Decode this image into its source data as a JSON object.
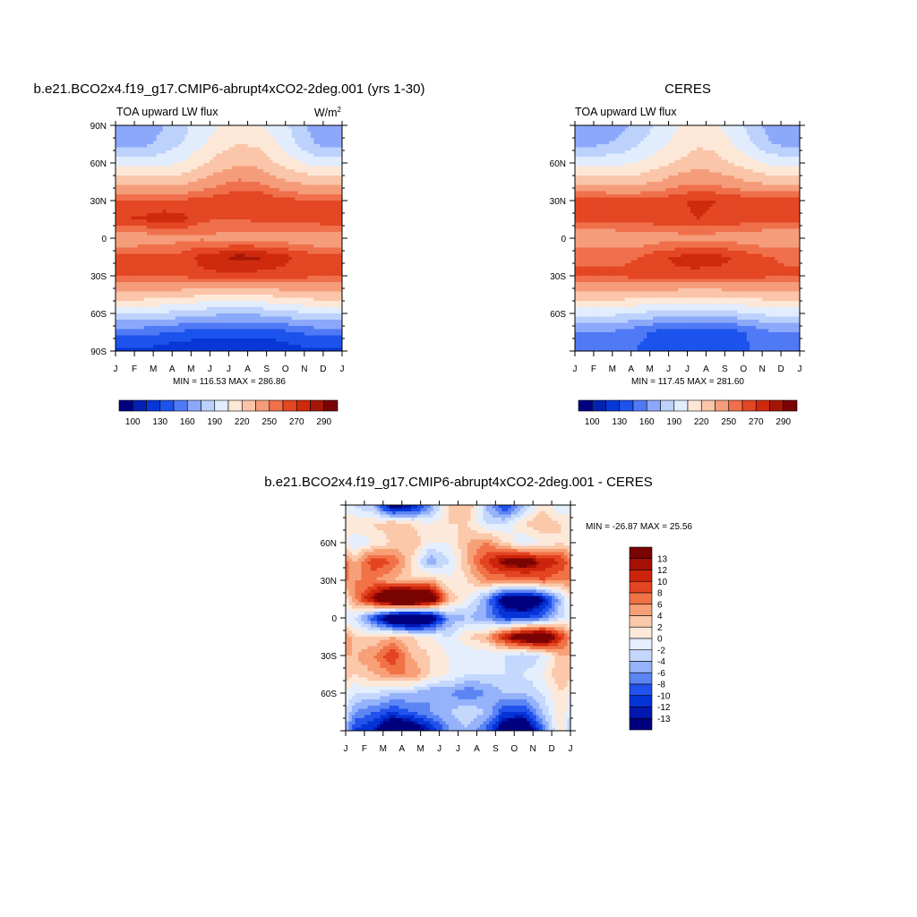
{
  "chart_data": [
    {
      "type": "heatmap",
      "title": "b.e21.BCO2x4.f19_g17.CMIP6-abrupt4xCO2-2deg.001 (yrs 1-30)",
      "subtitle": "TOA upward LW flux",
      "units": "W/m",
      "units_superscript": "2",
      "x_ticks": [
        "J",
        "F",
        "M",
        "A",
        "M",
        "J",
        "J",
        "A",
        "S",
        "O",
        "N",
        "D",
        "J"
      ],
      "y_ticks": [
        {
          "lat": 90,
          "label": "90N"
        },
        {
          "lat": 60,
          "label": "60N"
        },
        {
          "lat": 30,
          "label": "30N"
        },
        {
          "lat": 0,
          "label": "0"
        },
        {
          "lat": -30,
          "label": "30S"
        },
        {
          "lat": -60,
          "label": "60S"
        },
        {
          "lat": -90,
          "label": "90S"
        }
      ],
      "min": 116.53,
      "max": 286.86,
      "stats_text": "MIN = 116.53 MAX = 286.86",
      "colorbar_labels": [
        "100",
        "130",
        "160",
        "190",
        "220",
        "250",
        "270",
        "290"
      ],
      "months": [
        "Jan",
        "Feb",
        "Mar",
        "Apr",
        "May",
        "Jun",
        "Jul",
        "Aug",
        "Sep",
        "Oct",
        "Nov",
        "Dec"
      ],
      "latitudes": [
        -88,
        -75,
        -60,
        -45,
        -30,
        -15,
        0,
        15,
        30,
        45,
        60,
        75,
        88
      ],
      "values": [
        [
          128,
          130,
          125,
          120,
          118,
          119,
          118,
          118,
          121,
          126,
          130,
          128
        ],
        [
          150,
          150,
          146,
          142,
          138,
          137,
          136,
          136,
          138,
          144,
          150,
          150
        ],
        [
          190,
          190,
          188,
          184,
          180,
          178,
          178,
          178,
          182,
          186,
          190,
          190
        ],
        [
          230,
          230,
          228,
          226,
          222,
          222,
          222,
          222,
          224,
          228,
          230,
          230
        ],
        [
          262,
          262,
          260,
          262,
          266,
          268,
          266,
          266,
          266,
          264,
          262,
          262
        ],
        [
          262,
          262,
          262,
          264,
          274,
          278,
          284,
          282,
          276,
          270,
          264,
          262
        ],
        [
          240,
          242,
          244,
          246,
          248,
          246,
          244,
          244,
          244,
          242,
          240,
          240
        ],
        [
          270,
          272,
          276,
          274,
          262,
          260,
          260,
          262,
          262,
          262,
          266,
          268
        ],
        [
          262,
          262,
          262,
          262,
          264,
          266,
          270,
          270,
          266,
          262,
          262,
          262
        ],
        [
          228,
          228,
          228,
          230,
          238,
          246,
          252,
          250,
          240,
          234,
          230,
          228
        ],
        [
          198,
          198,
          200,
          206,
          216,
          226,
          232,
          230,
          220,
          210,
          200,
          198
        ],
        [
          168,
          172,
          180,
          190,
          202,
          214,
          220,
          218,
          206,
          190,
          176,
          168
        ],
        [
          160,
          164,
          175,
          185,
          198,
          206,
          210,
          208,
          200,
          186,
          170,
          160
        ]
      ]
    },
    {
      "type": "heatmap",
      "title": "CERES",
      "subtitle": "TOA upward LW flux",
      "x_ticks": [
        "J",
        "F",
        "M",
        "A",
        "M",
        "J",
        "J",
        "A",
        "S",
        "O",
        "N",
        "D",
        "J"
      ],
      "y_ticks": [
        {
          "lat": 60,
          "label": "60N"
        },
        {
          "lat": 30,
          "label": "30N"
        },
        {
          "lat": 0,
          "label": "0"
        },
        {
          "lat": -30,
          "label": "30S"
        },
        {
          "lat": -60,
          "label": "60S"
        }
      ],
      "min": 117.45,
      "max": 281.6,
      "stats_text": "MIN = 117.45 MAX = 281.60",
      "colorbar_labels": [
        "100",
        "130",
        "160",
        "190",
        "220",
        "250",
        "270",
        "290"
      ],
      "months": [
        "Jan",
        "Feb",
        "Mar",
        "Apr",
        "May",
        "Jun",
        "Jul",
        "Aug",
        "Sep",
        "Oct",
        "Nov",
        "Dec"
      ],
      "latitudes": [
        -88,
        -75,
        -60,
        -45,
        -30,
        -15,
        0,
        15,
        30,
        45,
        60,
        75,
        88
      ],
      "values": [
        [
          150,
          150,
          148,
          144,
          140,
          138,
          138,
          138,
          140,
          146,
          150,
          150
        ],
        [
          160,
          160,
          155,
          148,
          140,
          136,
          135,
          136,
          140,
          148,
          158,
          160
        ],
        [
          195,
          195,
          192,
          188,
          184,
          182,
          182,
          182,
          186,
          190,
          195,
          195
        ],
        [
          230,
          230,
          230,
          228,
          226,
          224,
          224,
          224,
          226,
          228,
          230,
          230
        ],
        [
          262,
          262,
          262,
          264,
          266,
          268,
          266,
          266,
          266,
          264,
          262,
          262
        ],
        [
          258,
          258,
          258,
          260,
          268,
          272,
          276,
          274,
          270,
          264,
          260,
          258
        ],
        [
          240,
          240,
          242,
          242,
          244,
          244,
          244,
          244,
          244,
          242,
          240,
          240
        ],
        [
          262,
          262,
          262,
          264,
          266,
          268,
          270,
          268,
          266,
          264,
          262,
          262
        ],
        [
          266,
          266,
          264,
          264,
          266,
          268,
          272,
          270,
          268,
          266,
          266,
          266
        ],
        [
          228,
          228,
          228,
          230,
          236,
          244,
          248,
          246,
          240,
          234,
          230,
          228
        ],
        [
          200,
          200,
          202,
          206,
          214,
          222,
          228,
          226,
          218,
          210,
          202,
          200
        ],
        [
          170,
          174,
          180,
          190,
          200,
          210,
          218,
          216,
          204,
          190,
          176,
          170
        ],
        [
          160,
          164,
          172,
          182,
          195,
          205,
          210,
          208,
          198,
          184,
          168,
          160
        ]
      ]
    },
    {
      "type": "heatmap",
      "title": "b.e21.BCO2x4.f19_g17.CMIP6-abrupt4xCO2-2deg.001 - CERES",
      "x_ticks": [
        "J",
        "F",
        "M",
        "A",
        "M",
        "J",
        "J",
        "A",
        "S",
        "O",
        "N",
        "D",
        "J"
      ],
      "y_ticks": [
        {
          "lat": 60,
          "label": "60N"
        },
        {
          "lat": 30,
          "label": "30N"
        },
        {
          "lat": 0,
          "label": "0"
        },
        {
          "lat": -30,
          "label": "30S"
        },
        {
          "lat": -60,
          "label": "60S"
        }
      ],
      "min": -26.87,
      "max": 25.56,
      "stats_text": "MIN = -26.87 MAX =  25.56",
      "colorbar_labels": [
        "13",
        "12",
        "10",
        "8",
        "6",
        "4",
        "2",
        "0",
        "-2",
        "-4",
        "-6",
        "-8",
        "-10",
        "-12",
        "-13"
      ],
      "months": [
        "Jan",
        "Feb",
        "Mar",
        "Apr",
        "May",
        "Jun",
        "Jul",
        "Aug",
        "Sep",
        "Oct",
        "Nov",
        "Dec"
      ],
      "latitudes": [
        -88,
        -75,
        -60,
        -45,
        -30,
        -15,
        0,
        15,
        30,
        45,
        60,
        75,
        88
      ],
      "values": [
        [
          -10,
          -12,
          -18,
          -16,
          -12,
          -6,
          -4,
          -8,
          -16,
          -18,
          -8,
          2
        ],
        [
          -6,
          -8,
          -10,
          -8,
          -6,
          -4,
          -2,
          -4,
          -10,
          -10,
          -4,
          2
        ],
        [
          -2,
          -2,
          -4,
          -4,
          -6,
          -6,
          -8,
          -6,
          -4,
          -4,
          -2,
          2
        ],
        [
          2,
          4,
          6,
          6,
          2,
          0,
          -2,
          -2,
          -2,
          -2,
          0,
          4
        ],
        [
          4,
          6,
          10,
          4,
          2,
          0,
          -2,
          -2,
          -2,
          -4,
          -2,
          4
        ],
        [
          2,
          2,
          4,
          2,
          0,
          -2,
          2,
          4,
          12,
          18,
          20,
          10
        ],
        [
          -2,
          -10,
          -20,
          -24,
          -18,
          -6,
          -4,
          -6,
          -10,
          -10,
          -8,
          -2
        ],
        [
          6,
          14,
          24,
          26,
          20,
          4,
          0,
          -6,
          -16,
          -18,
          -14,
          -4
        ],
        [
          6,
          6,
          4,
          2,
          4,
          0,
          2,
          6,
          6,
          6,
          8,
          6
        ],
        [
          4,
          10,
          8,
          2,
          -6,
          -2,
          4,
          10,
          14,
          16,
          12,
          10
        ],
        [
          -2,
          0,
          2,
          4,
          0,
          0,
          4,
          6,
          2,
          -2,
          0,
          2
        ],
        [
          2,
          2,
          4,
          2,
          0,
          2,
          2,
          -2,
          -2,
          2,
          4,
          2
        ],
        [
          -2,
          -4,
          -14,
          -12,
          -6,
          2,
          4,
          -4,
          -10,
          -4,
          2,
          -2
        ]
      ]
    }
  ],
  "colors": {
    "abs_palette": [
      "#00007f",
      "#0321b1",
      "#0737d6",
      "#1c53ec",
      "#5079f5",
      "#8ca8fa",
      "#bcd2fc",
      "#e1ecfd",
      "#fde8d8",
      "#fac5a8",
      "#f59d7a",
      "#f0704c",
      "#e44723",
      "#cf2a0d",
      "#a61606",
      "#7a0403"
    ],
    "diff_palette": [
      "#00007f",
      "#0018b0",
      "#0433d6",
      "#2152ec",
      "#5c85f4",
      "#95b2fa",
      "#c4d7fc",
      "#e4eefd",
      "#fde9da",
      "#fbc8aa",
      "#f7a078",
      "#f27247",
      "#e34421",
      "#cc240b",
      "#a60f04",
      "#7a0403"
    ],
    "frame": "#000000"
  }
}
